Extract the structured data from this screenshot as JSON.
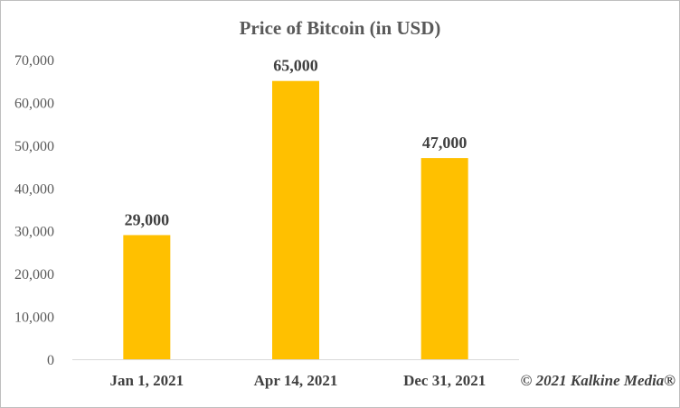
{
  "chart_data": {
    "type": "bar",
    "title": "Price of Bitcoin (in USD)",
    "xlabel": "",
    "ylabel": "",
    "categories": [
      "Jan 1, 2021",
      "Apr 14, 2021",
      "Dec 31, 2021"
    ],
    "values": [
      29000,
      65000,
      47000
    ],
    "data_labels": [
      "29,000",
      "65,000",
      "47,000"
    ],
    "ylim": [
      0,
      70000
    ],
    "yticks": [
      0,
      10000,
      20000,
      30000,
      40000,
      50000,
      60000,
      70000
    ],
    "ytick_labels": [
      "0",
      "10,000",
      "20,000",
      "30,000",
      "40,000",
      "50,000",
      "60,000",
      "70,000"
    ],
    "grid": false,
    "legend": "none",
    "bar_color": "#FFC000"
  },
  "watermark": "© 2021 Kalkine Media®"
}
